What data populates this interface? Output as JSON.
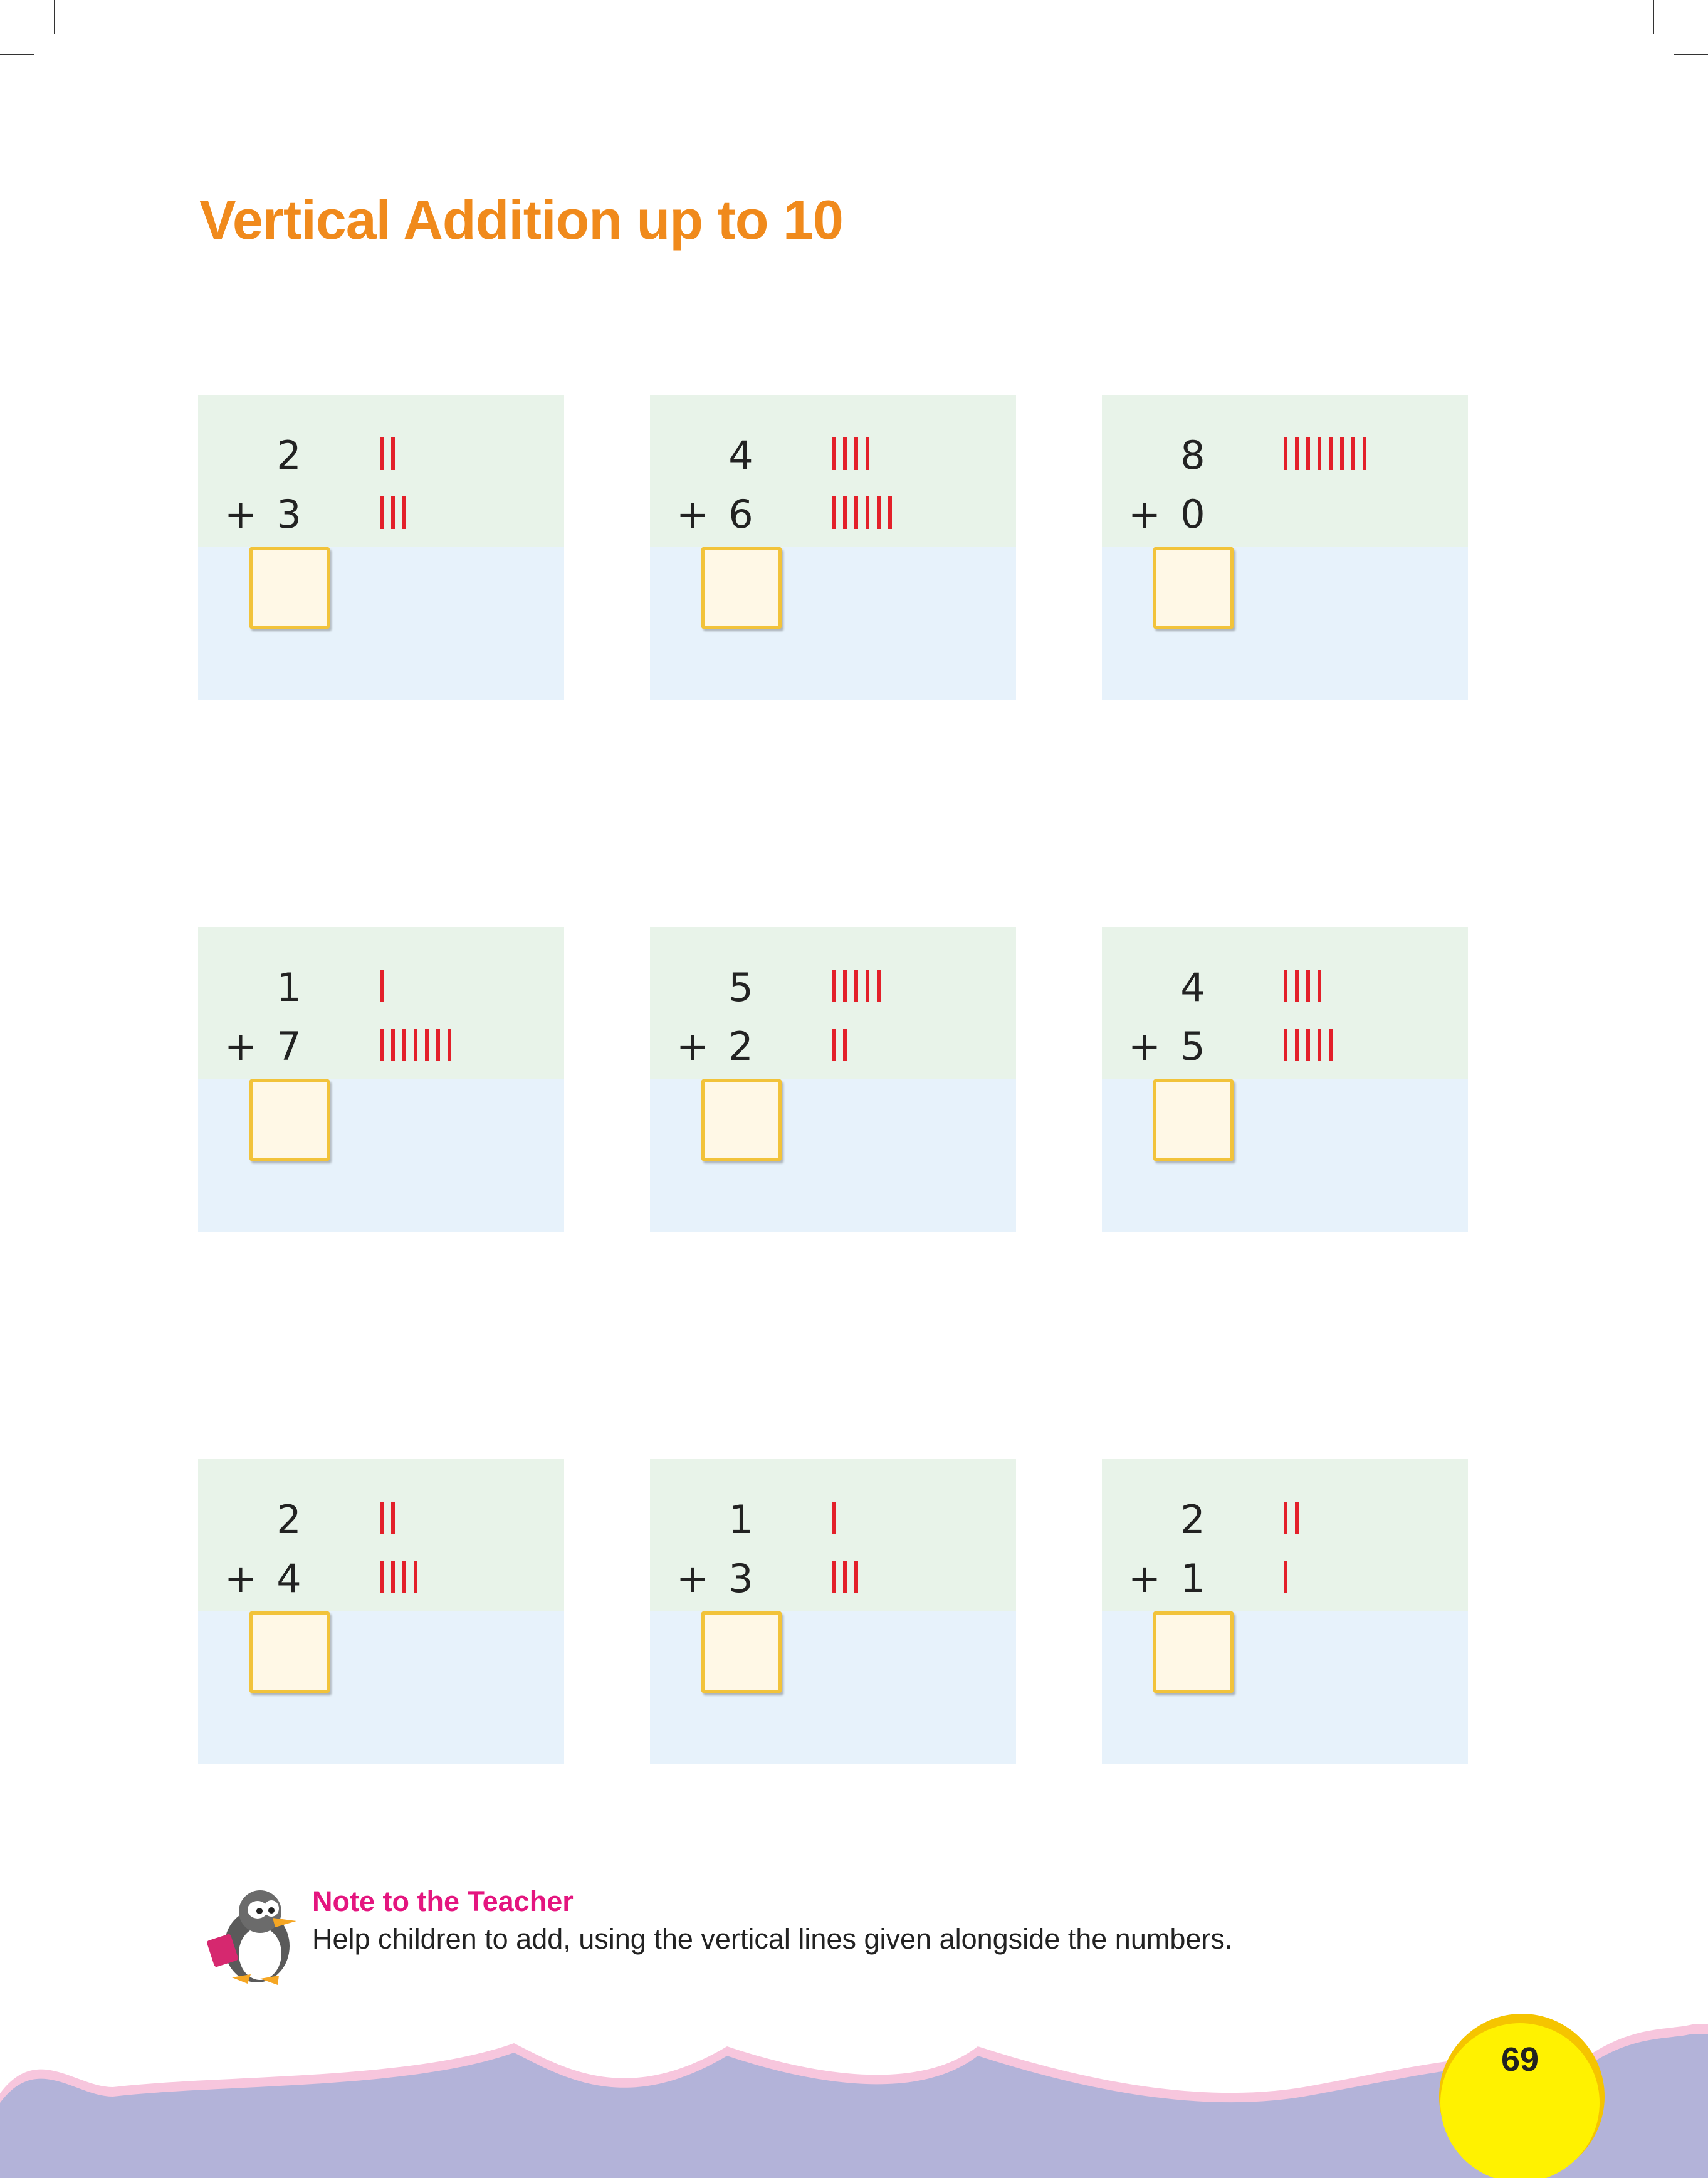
{
  "page": {
    "title": "Vertical Addition up to 10",
    "page_number": "69"
  },
  "colors": {
    "title": "#f08a1c",
    "tick": "#e3202a",
    "card_top": "#e8f3e9",
    "card_bottom": "#e7f2fb",
    "answer_box_border": "#f2c33a",
    "note_title": "#e4157f",
    "wave": "#b3b3d9",
    "wave_edge": "#f7c6dd",
    "page_circle": "#fff200"
  },
  "problems": [
    {
      "a": "2",
      "b": "3",
      "op": "+",
      "a_ticks": 2,
      "b_ticks": 3
    },
    {
      "a": "4",
      "b": "6",
      "op": "+",
      "a_ticks": 4,
      "b_ticks": 6
    },
    {
      "a": "8",
      "b": "0",
      "op": "+",
      "a_ticks": 8,
      "b_ticks": 0
    },
    {
      "a": "1",
      "b": "7",
      "op": "+",
      "a_ticks": 1,
      "b_ticks": 7
    },
    {
      "a": "5",
      "b": "2",
      "op": "+",
      "a_ticks": 5,
      "b_ticks": 2
    },
    {
      "a": "4",
      "b": "5",
      "op": "+",
      "a_ticks": 4,
      "b_ticks": 5
    },
    {
      "a": "2",
      "b": "4",
      "op": "+",
      "a_ticks": 2,
      "b_ticks": 4
    },
    {
      "a": "1",
      "b": "3",
      "op": "+",
      "a_ticks": 1,
      "b_ticks": 3
    },
    {
      "a": "2",
      "b": "1",
      "op": "+",
      "a_ticks": 2,
      "b_ticks": 1
    }
  ],
  "note": {
    "title": "Note to the Teacher",
    "text": "Help children to add, using the vertical lines given alongside the numbers.",
    "icon": "penguin-icon"
  }
}
